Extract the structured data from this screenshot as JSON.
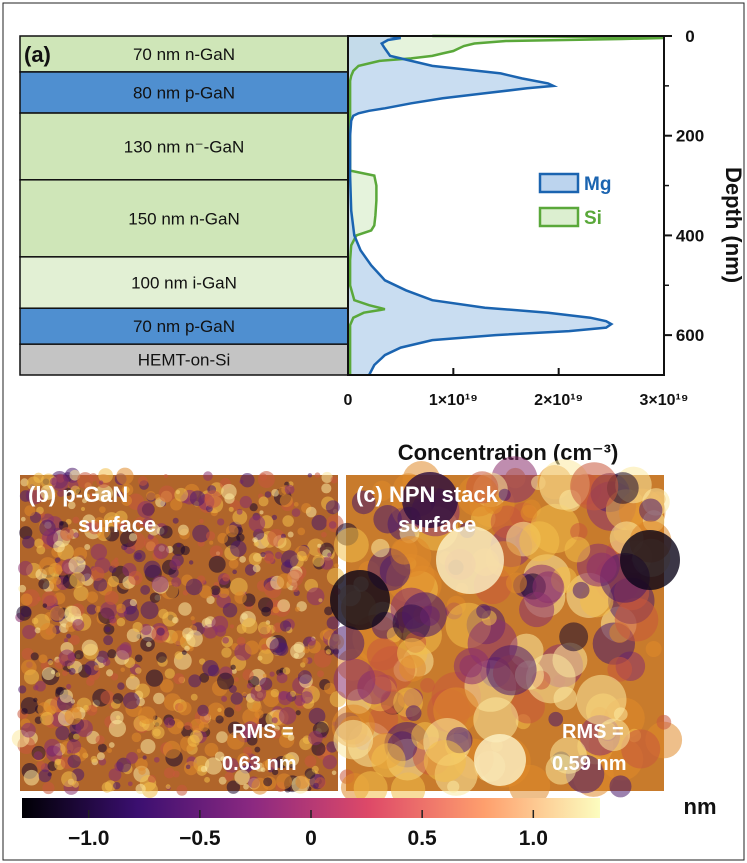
{
  "figure": {
    "panel_a": {
      "label": "(a)",
      "layers": [
        {
          "label": "70 nm n-GaN",
          "thickness_nm": 70,
          "color": "#cfe6b8"
        },
        {
          "label": "80 nm p-GaN",
          "thickness_nm": 80,
          "color": "#4f8fd0"
        },
        {
          "label": "130 nm n⁻-GaN",
          "thickness_nm": 130,
          "color": "#cfe6b8"
        },
        {
          "label": "150 nm n-GaN",
          "thickness_nm": 150,
          "color": "#cfe6b8"
        },
        {
          "label": "100 nm i-GaN",
          "thickness_nm": 100,
          "color": "#e2f0d4"
        },
        {
          "label": "70 nm p-GaN",
          "thickness_nm": 70,
          "color": "#4f8fd0"
        },
        {
          "label": "HEMT-on-Si",
          "thickness_nm": 60,
          "color": "#c4c4c4"
        }
      ]
    },
    "panel_b": {
      "label_line1": "(b) p-GaN",
      "label_line2": "surface",
      "rms_line1": "RMS =",
      "rms_line2": "0.63 nm"
    },
    "panel_c": {
      "label_line1": "(c) NPN stack",
      "label_line2": "surface",
      "rms_line1": "RMS =",
      "rms_line2": "0.59 nm"
    },
    "colorbar": {
      "unit": "nm",
      "ticks": [
        "−1.0",
        "−0.5",
        "0",
        "0.5",
        "1.0"
      ],
      "range": [
        -1.3,
        1.3
      ],
      "colors": [
        "#000004",
        "#3b0f70",
        "#8c2981",
        "#de4968",
        "#fe9f6d",
        "#fcfdbf"
      ]
    }
  },
  "chart_data": {
    "type": "area",
    "xlabel": "Concentration (cm⁻³)",
    "ylabel": "Depth (nm)",
    "xlim": [
      0,
      3e+19
    ],
    "ylim": [
      0,
      680
    ],
    "y_inverted": true,
    "x_tick_values": [
      0,
      1e+19,
      2e+19,
      3e+19
    ],
    "x_tick_labels": [
      "0",
      "1×10¹⁹",
      "2×10¹⁹",
      "3×10¹⁹"
    ],
    "y_tick_values": [
      0,
      200,
      400,
      600
    ],
    "y_tick_labels": [
      "0",
      "200",
      "400",
      "600"
    ],
    "legend_position": "right",
    "series": [
      {
        "name": "Mg",
        "color": "#1b64b0",
        "fill": "#bcd4ee",
        "depth_nm": [
          0,
          4,
          8,
          15,
          25,
          40,
          60,
          75,
          85,
          95,
          100,
          105,
          115,
          125,
          135,
          145,
          150,
          155,
          160,
          170,
          200,
          280,
          350,
          400,
          430,
          460,
          490,
          510,
          530,
          545,
          555,
          565,
          572,
          578,
          585,
          592,
          600,
          610,
          625,
          640,
          660,
          680
        ],
        "conc": [
          4e+18,
          5e+18,
          3.8e+18,
          3.2e+18,
          3.5e+18,
          4e+18,
          8e+18,
          1.45e+19,
          1.65e+19,
          1.9e+19,
          1.95e+19,
          1.7e+19,
          1.3e+19,
          9e+18,
          6e+18,
          3.5e+18,
          2e+18,
          1e+18,
          5e+17,
          3e+17,
          2e+17,
          2e+17,
          3e+17,
          6e+17,
          1.2e+18,
          2.2e+18,
          3.5e+18,
          5.5e+18,
          8e+18,
          1.3e+19,
          1.9e+19,
          2.3e+19,
          2.45e+19,
          2.5e+19,
          2.45e+19,
          2.1e+19,
          1.4e+19,
          8e+18,
          5e+18,
          3.5e+18,
          2.5e+18,
          2e+18
        ]
      },
      {
        "name": "Si",
        "color": "#5aa83a",
        "fill": "#dcefd0",
        "depth_nm": [
          0,
          2,
          4,
          6,
          10,
          15,
          20,
          25,
          30,
          35,
          40,
          45,
          50,
          60,
          70,
          80,
          90,
          100,
          150,
          200,
          240,
          270,
          280,
          300,
          330,
          360,
          380,
          390,
          400,
          420,
          450,
          500,
          530,
          540,
          548,
          555,
          565,
          580,
          620,
          680
        ],
        "conc": [
          8e+18,
          2.5e+19,
          3e+19,
          2.6e+19,
          1.5e+19,
          1.2e+19,
          1.1e+19,
          1.05e+19,
          1e+19,
          9e+18,
          8e+18,
          6e+18,
          3e+18,
          1e+18,
          5e+17,
          3e+17,
          2e+17,
          2e+17,
          2e+17,
          2e+17,
          2e+17,
          2e+17,
          2.5e+18,
          2.7e+18,
          2.7e+18,
          2.6e+18,
          2.5e+18,
          2.2e+18,
          8e+17,
          3e+17,
          2e+17,
          2e+17,
          6e+17,
          2e+18,
          3.5e+18,
          1.5e+18,
          5e+17,
          2e+17,
          2e+17,
          2e+17
        ]
      }
    ]
  }
}
